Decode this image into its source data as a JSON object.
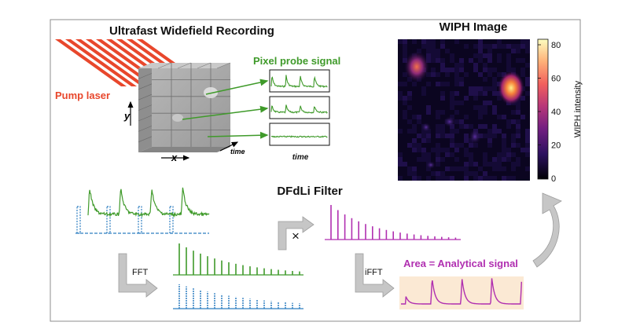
{
  "titles": {
    "recording": "Ultrafast Widefield Recording",
    "wiph_image": "WIPH Image",
    "filter": "DFdLi Filter"
  },
  "labels": {
    "pump_laser": "Pump laser",
    "pixel_probe_signal": "Pixel probe signal",
    "axis_x": "x",
    "axis_y": "y",
    "axis_time": "time",
    "trace_time": "time",
    "fft": "FFT",
    "ifft": "iFFT",
    "multiply": "×",
    "area_signal": "Area = Analytical signal"
  },
  "colorbar": {
    "label": "WIPH intensity",
    "ticks": [
      "80",
      "60",
      "40",
      "20",
      "0"
    ]
  },
  "colors": {
    "laser": "#e8472c",
    "signal_green": "#3f9a2a",
    "filter_blue": "#2f7fc1",
    "magenta": "#b02fb0",
    "arrow_gray": "#bdbdbd",
    "area_fill": "#fbe9d4"
  }
}
